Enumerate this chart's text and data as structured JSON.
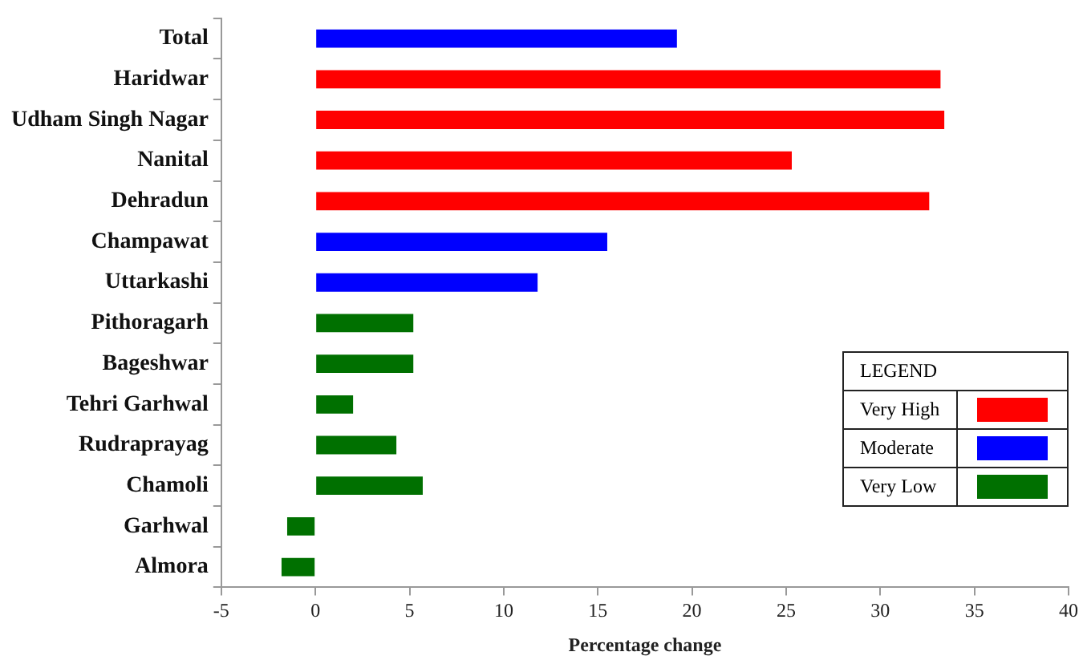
{
  "chart_data": {
    "type": "bar",
    "orientation": "horizontal",
    "xlabel": "Percentage change",
    "legend": "bottom right",
    "legend_title": "LEGEND",
    "categories": [
      "Total",
      "Haridwar",
      "Udham Singh Nagar",
      "Nanital",
      "Dehradun",
      "Champawat",
      "Uttarkashi",
      "Pithoragarh",
      "Bageshwar",
      "Tehri Garhwal",
      "Rudraprayag",
      "Chamoli",
      "Garhwal",
      "Almora"
    ],
    "series": [
      {
        "name": "Very High",
        "color": "#ff0000",
        "values": [
          null,
          33.2,
          33.4,
          25.3,
          32.6,
          null,
          null,
          null,
          null,
          null,
          null,
          null,
          null,
          null
        ]
      },
      {
        "name": "Moderate",
        "color": "#0000ff",
        "values": [
          19.2,
          null,
          null,
          null,
          null,
          15.5,
          11.8,
          null,
          null,
          null,
          null,
          null,
          null,
          null
        ]
      },
      {
        "name": "Very Low",
        "color": "#007000",
        "values": [
          null,
          null,
          null,
          null,
          null,
          null,
          null,
          5.2,
          5.2,
          2.0,
          4.3,
          5.7,
          -1.5,
          -1.8
        ]
      }
    ],
    "xlim": [
      -5,
      40
    ],
    "xticks": [
      -5,
      0,
      5,
      10,
      15,
      20,
      25,
      30,
      35,
      40
    ]
  }
}
